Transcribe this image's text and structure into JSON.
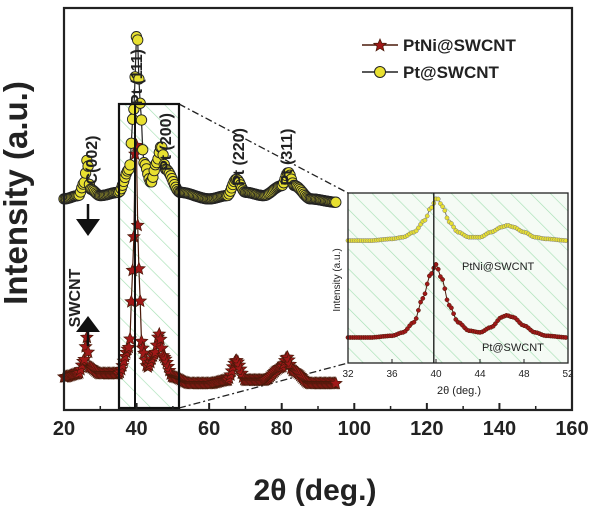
{
  "colors": {
    "axis": "#222222",
    "ptni_fill": "#a01818",
    "ptni_edge": "#4a1a0a",
    "pt_fill": "#e8e030",
    "pt_edge": "#222222",
    "hatch": "#a6e0b4",
    "highlight_box": "#111111",
    "inset_fill": "#f5fbf5"
  },
  "chart_data": [
    {
      "type": "line",
      "xlabel": "2θ (deg.)",
      "ylabel": "Intensity (a.u.)",
      "xlim": [
        20,
        160
      ],
      "xticks": [
        "20",
        "40",
        "60",
        "80",
        "100",
        "120",
        "140",
        "160"
      ],
      "grid": false,
      "legend_position": "top-right",
      "series": [
        {
          "name": "PtNi@SWCNT",
          "marker": "star",
          "color": "#a01818",
          "x": [
            20,
            24,
            25.5,
            26.3,
            27,
            30,
            35,
            38,
            39,
            39.8,
            40.6,
            41.5,
            43,
            45,
            46.2,
            47.5,
            50,
            55,
            60,
            65,
            67.5,
            70,
            75,
            80,
            81.5,
            83,
            88,
            95
          ],
          "y": [
            0.07,
            0.08,
            0.12,
            0.19,
            0.1,
            0.08,
            0.08,
            0.16,
            0.4,
            0.81,
            0.4,
            0.16,
            0.1,
            0.14,
            0.2,
            0.13,
            0.07,
            0.05,
            0.05,
            0.06,
            0.12,
            0.06,
            0.06,
            0.1,
            0.13,
            0.09,
            0.05,
            0.05
          ]
        },
        {
          "name": "Pt@SWCNT",
          "marker": "circle",
          "color": "#e8e030",
          "x": [
            20,
            24,
            25.6,
            26.4,
            27.2,
            30,
            35,
            38,
            39.2,
            40.1,
            41,
            42,
            44,
            45.5,
            46.8,
            48,
            52,
            60,
            65,
            67.5,
            70,
            75,
            80,
            81.8,
            83.5,
            88,
            95
          ],
          "y": [
            0.61,
            0.62,
            0.66,
            0.73,
            0.64,
            0.62,
            0.63,
            0.7,
            0.88,
            1.12,
            0.9,
            0.72,
            0.66,
            0.72,
            0.77,
            0.7,
            0.63,
            0.61,
            0.62,
            0.67,
            0.63,
            0.62,
            0.65,
            0.69,
            0.65,
            0.61,
            0.6
          ]
        }
      ],
      "annotations": [
        "C(002)",
        "Pt (111)",
        "Pt (200)",
        "Pt (220)",
        "Pt (311)",
        "SWCNT"
      ]
    },
    {
      "type": "line",
      "xlabel": "2θ (deg.)",
      "ylabel": "Intensity (a.u.)",
      "xlim": [
        32,
        52
      ],
      "xticks": [
        "32",
        "36",
        "40",
        "44",
        "48",
        "52"
      ],
      "grid": false,
      "series": [
        {
          "name": "PtNi@SWCNT",
          "x": [
            32,
            34,
            36,
            37,
            38,
            39,
            39.5,
            40.1,
            40.6,
            41.2,
            42,
            43,
            44,
            45,
            46,
            46.5,
            47,
            48,
            49,
            50,
            52
          ],
          "y": [
            0.72,
            0.72,
            0.73,
            0.74,
            0.77,
            0.84,
            0.91,
            0.97,
            0.92,
            0.83,
            0.77,
            0.74,
            0.74,
            0.77,
            0.8,
            0.81,
            0.8,
            0.77,
            0.74,
            0.73,
            0.72
          ]
        },
        {
          "name": "Pt@SWCNT",
          "x": [
            32,
            34,
            36,
            37,
            38,
            38.8,
            39.5,
            40.0,
            40.5,
            41.2,
            42,
            43,
            44,
            45,
            46,
            46.4,
            47,
            48,
            49,
            50,
            52
          ],
          "y": [
            0.15,
            0.15,
            0.16,
            0.18,
            0.24,
            0.38,
            0.52,
            0.58,
            0.5,
            0.34,
            0.24,
            0.19,
            0.18,
            0.21,
            0.27,
            0.28,
            0.27,
            0.22,
            0.18,
            0.16,
            0.15
          ]
        }
      ],
      "reference_line_x": 39.8
    }
  ],
  "text": {
    "ylabel": "Intensity (a.u.)",
    "xlabel": "2θ (deg.)",
    "legend_1": "PtNi@SWCNT",
    "legend_2": "Pt@SWCNT",
    "ann_c002": "C(002)",
    "ann_pt111": "Pt (111)",
    "ann_pt200": "Pt (200)",
    "ann_pt220": "Pt (220)",
    "ann_pt311": "Pt (311)",
    "ann_swcnt": "SWCNT",
    "inset_ylabel": "Intensity (a.u.)",
    "inset_xlabel": "2θ (deg.)",
    "inset_top_label": "PtNi@SWCNT",
    "inset_bottom_label": "Pt@SWCNT"
  }
}
